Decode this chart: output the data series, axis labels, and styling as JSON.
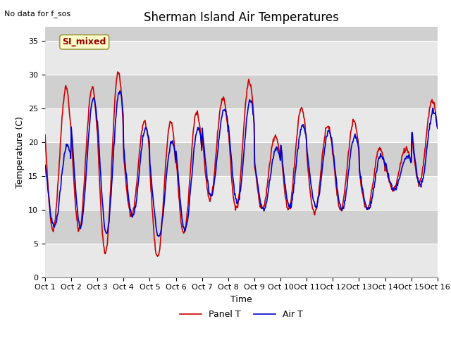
{
  "title": "Sherman Island Air Temperatures",
  "xlabel": "Time",
  "ylabel": "Temperature (C)",
  "no_data_text": "No data for f_sos",
  "label_text": "SI_mixed",
  "legend_panel": "Panel T",
  "legend_air": "Air T",
  "ylim": [
    0,
    37
  ],
  "yticks": [
    0,
    5,
    10,
    15,
    20,
    25,
    30,
    35
  ],
  "xtick_labels": [
    "Oct 1",
    "Oct 2",
    "Oct 3",
    "Oct 4",
    "Oct 5",
    "Oct 6",
    "Oct 7",
    "Oct 8",
    "Oct 9",
    "Oct 10",
    "Oct 11",
    "Oct 12",
    "Oct 13",
    "Oct 14",
    "Oct 15",
    "Oct 16"
  ],
  "color_panel": "#cc0000",
  "color_air": "#0000cc",
  "bg_color": "#dcdcdc",
  "band_light": "#e8e8e8",
  "band_dark": "#d0d0d0",
  "label_bg": "#ffffcc",
  "label_fg": "#990000",
  "title_fontsize": 12,
  "axis_fontsize": 9,
  "tick_fontsize": 8,
  "line_width": 1.2
}
